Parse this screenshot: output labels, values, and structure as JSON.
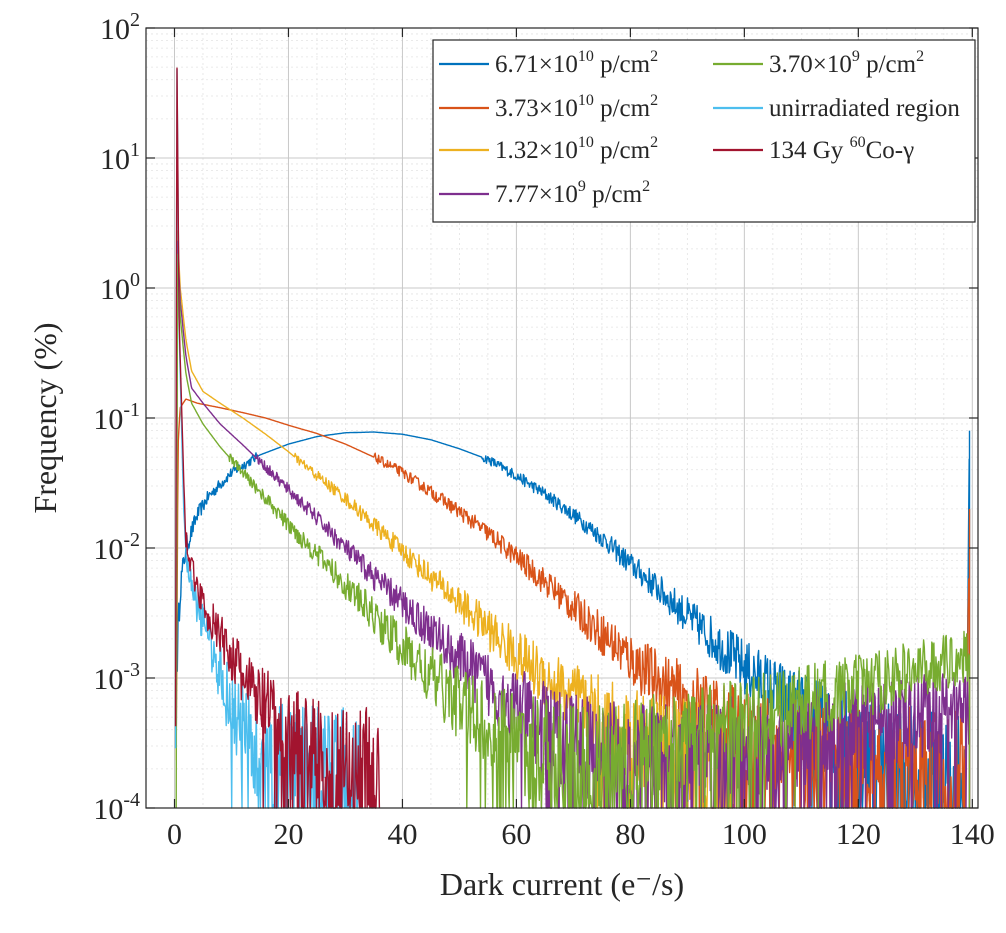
{
  "chart_data": {
    "type": "line",
    "title": "",
    "xlabel": "Dark current (e⁻/s)",
    "ylabel": "Frequency (%)",
    "xlim": [
      -5,
      141
    ],
    "ylim": [
      0.0001,
      100
    ],
    "yscale": "log",
    "grid": true,
    "minor_grid": true,
    "legend_position": "top-right",
    "x_ticks": [
      "0",
      "20",
      "40",
      "60",
      "80",
      "100",
      "120",
      "140"
    ],
    "y_ticks": [
      {
        "base": "10",
        "exp": "-4",
        "value": 0.0001
      },
      {
        "base": "10",
        "exp": "-3",
        "value": 0.001
      },
      {
        "base": "10",
        "exp": "-2",
        "value": 0.01
      },
      {
        "base": "10",
        "exp": "-1",
        "value": 0.1
      },
      {
        "base": "10",
        "exp": "0",
        "value": 1
      },
      {
        "base": "10",
        "exp": "1",
        "value": 10
      },
      {
        "base": "10",
        "exp": "2",
        "value": 100
      }
    ],
    "series": [
      {
        "name": "6.71×10¹⁰ p/cm²",
        "legend": {
          "main": "6.71×10",
          "sup": "10",
          "rest": " p/cm",
          "sup2": "2"
        },
        "color": "#0072BD",
        "points": [
          [
            0.5,
            0.0016
          ],
          [
            1,
            0.005
          ],
          [
            2,
            0.01
          ],
          [
            4,
            0.018
          ],
          [
            6,
            0.025
          ],
          [
            10,
            0.038
          ],
          [
            15,
            0.052
          ],
          [
            20,
            0.063
          ],
          [
            25,
            0.072
          ],
          [
            30,
            0.077
          ],
          [
            35,
            0.078
          ],
          [
            40,
            0.075
          ],
          [
            45,
            0.068
          ],
          [
            50,
            0.058
          ],
          [
            55,
            0.048
          ],
          [
            60,
            0.036
          ],
          [
            65,
            0.026
          ],
          [
            70,
            0.018
          ],
          [
            75,
            0.012
          ],
          [
            80,
            0.0075
          ],
          [
            85,
            0.0048
          ],
          [
            90,
            0.003
          ],
          [
            95,
            0.0019
          ],
          [
            100,
            0.0012
          ],
          [
            105,
            0.0008
          ],
          [
            110,
            0.00055
          ],
          [
            115,
            0.0004
          ],
          [
            120,
            0.00031
          ],
          [
            125,
            0.00025
          ],
          [
            130,
            0.00022
          ],
          [
            135,
            0.0002
          ],
          [
            139,
            0.0002
          ],
          [
            139.5,
            0.08
          ]
        ]
      },
      {
        "name": "3.73×10¹⁰ p/cm²",
        "legend": {
          "main": "3.73×10",
          "sup": "10",
          "rest": " p/cm",
          "sup2": "2"
        },
        "color": "#D95319",
        "points": [
          [
            0.3,
            0.0002
          ],
          [
            0.6,
            0.06
          ],
          [
            1,
            0.12
          ],
          [
            2,
            0.14
          ],
          [
            4,
            0.13
          ],
          [
            8,
            0.12
          ],
          [
            12,
            0.11
          ],
          [
            16,
            0.1
          ],
          [
            20,
            0.088
          ],
          [
            25,
            0.076
          ],
          [
            30,
            0.063
          ],
          [
            35,
            0.05
          ],
          [
            40,
            0.038
          ],
          [
            45,
            0.027
          ],
          [
            50,
            0.019
          ],
          [
            55,
            0.013
          ],
          [
            60,
            0.0085
          ],
          [
            65,
            0.0055
          ],
          [
            70,
            0.0035
          ],
          [
            75,
            0.0022
          ],
          [
            80,
            0.0014
          ],
          [
            85,
            0.00095
          ],
          [
            90,
            0.00065
          ],
          [
            95,
            0.00048
          ],
          [
            100,
            0.00036
          ],
          [
            105,
            0.0003
          ],
          [
            110,
            0.00026
          ],
          [
            120,
            0.00023
          ],
          [
            130,
            0.00022
          ],
          [
            139,
            0.00022
          ],
          [
            139.5,
            0.02
          ]
        ]
      },
      {
        "name": "1.32×10¹⁰ p/cm²",
        "legend": {
          "main": "1.32×10",
          "sup": "10",
          "rest": " p/cm",
          "sup2": "2"
        },
        "color": "#EDB120",
        "points": [
          [
            0.3,
            0.0002
          ],
          [
            0.5,
            3
          ],
          [
            1,
            1
          ],
          [
            2,
            0.4
          ],
          [
            3,
            0.23
          ],
          [
            5,
            0.16
          ],
          [
            8,
            0.13
          ],
          [
            12,
            0.1
          ],
          [
            16,
            0.075
          ],
          [
            20,
            0.055
          ],
          [
            25,
            0.036
          ],
          [
            30,
            0.024
          ],
          [
            35,
            0.015
          ],
          [
            40,
            0.0095
          ],
          [
            45,
            0.006
          ],
          [
            50,
            0.0038
          ],
          [
            55,
            0.0024
          ],
          [
            60,
            0.0015
          ],
          [
            65,
            0.001
          ],
          [
            70,
            0.0007
          ],
          [
            75,
            0.0005
          ],
          [
            80,
            0.00036
          ],
          [
            85,
            0.0003
          ],
          [
            90,
            0.00026
          ],
          [
            95,
            0.00024
          ],
          [
            98,
            0.00022
          ]
        ]
      },
      {
        "name": "7.77×10⁹ p/cm²",
        "legend": {
          "main": "7.77×10",
          "sup": "9",
          "rest": " p/cm",
          "sup2": "2"
        },
        "color": "#7E2F8E",
        "points": [
          [
            0.3,
            0.0002
          ],
          [
            0.5,
            2.5
          ],
          [
            1,
            0.8
          ],
          [
            2,
            0.3
          ],
          [
            3,
            0.17
          ],
          [
            5,
            0.13
          ],
          [
            8,
            0.09
          ],
          [
            12,
            0.062
          ],
          [
            16,
            0.042
          ],
          [
            20,
            0.028
          ],
          [
            25,
            0.017
          ],
          [
            30,
            0.01
          ],
          [
            35,
            0.006
          ],
          [
            40,
            0.0037
          ],
          [
            45,
            0.0023
          ],
          [
            50,
            0.0014
          ],
          [
            55,
            0.0009
          ],
          [
            60,
            0.0006
          ],
          [
            65,
            0.00042
          ],
          [
            70,
            0.00032
          ],
          [
            75,
            0.00026
          ],
          [
            80,
            0.00023
          ],
          [
            84,
            0.00022
          ],
          [
            139.5,
            0.0006
          ]
        ]
      },
      {
        "name": "3.70×10⁹ p/cm²",
        "legend": {
          "main": "3.70×10",
          "sup": "9",
          "rest": " p/cm",
          "sup2": "2"
        },
        "color": "#77AC30",
        "points": [
          [
            0.3,
            0.0002
          ],
          [
            0.5,
            2
          ],
          [
            1,
            0.6
          ],
          [
            2,
            0.22
          ],
          [
            3,
            0.13
          ],
          [
            5,
            0.09
          ],
          [
            8,
            0.06
          ],
          [
            12,
            0.038
          ],
          [
            16,
            0.024
          ],
          [
            20,
            0.015
          ],
          [
            25,
            0.009
          ],
          [
            30,
            0.0052
          ],
          [
            35,
            0.003
          ],
          [
            40,
            0.0017
          ],
          [
            45,
            0.001
          ],
          [
            50,
            0.00065
          ],
          [
            55,
            0.00045
          ],
          [
            60,
            0.00033
          ],
          [
            65,
            0.00026
          ],
          [
            70,
            0.00023
          ],
          [
            74,
            0.00022
          ],
          [
            139.5,
            0.0015
          ]
        ]
      },
      {
        "name": "unirradiated region",
        "legend": {
          "main": "unirradiated region",
          "sup": "",
          "rest": "",
          "sup2": ""
        },
        "color": "#4DBEEE",
        "points": [
          [
            0.2,
            0.0002
          ],
          [
            0.4,
            80
          ],
          [
            0.8,
            0.5
          ],
          [
            1.5,
            0.03
          ],
          [
            2,
            0.009
          ],
          [
            3,
            0.005
          ],
          [
            4,
            0.0035
          ],
          [
            6,
            0.002
          ],
          [
            8,
            0.0011
          ],
          [
            10,
            0.0006
          ],
          [
            12,
            0.0004
          ],
          [
            15,
            0.00028
          ],
          [
            20,
            0.00023
          ],
          [
            25,
            0.00022
          ],
          [
            33,
            0.0002
          ]
        ]
      },
      {
        "name": "134 Gy ⁶⁰Co-γ",
        "legend": {
          "main": "134 Gy ",
          "sup": "60",
          "rest": "Co-γ",
          "sup2": ""
        },
        "color": "#A2142F",
        "points": [
          [
            0.2,
            0.0002
          ],
          [
            0.4,
            80
          ],
          [
            0.8,
            0.6
          ],
          [
            1.5,
            0.05
          ],
          [
            2,
            0.012
          ],
          [
            3,
            0.007
          ],
          [
            4,
            0.005
          ],
          [
            6,
            0.003
          ],
          [
            8,
            0.0021
          ],
          [
            10,
            0.0015
          ],
          [
            12,
            0.001
          ],
          [
            15,
            0.00065
          ],
          [
            18,
            0.00045
          ],
          [
            22,
            0.00032
          ],
          [
            26,
            0.00025
          ],
          [
            30,
            0.00022
          ],
          [
            36,
            0.0002
          ]
        ]
      }
    ]
  }
}
